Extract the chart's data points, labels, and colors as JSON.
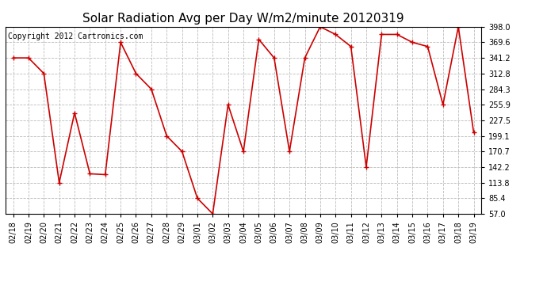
{
  "title": "Solar Radiation Avg per Day W/m2/minute 20120319",
  "copyright": "Copyright 2012 Cartronics.com",
  "dates": [
    "02/18",
    "02/19",
    "02/20",
    "02/21",
    "02/22",
    "02/23",
    "02/24",
    "02/25",
    "02/26",
    "02/27",
    "02/28",
    "02/29",
    "03/01",
    "03/02",
    "03/03",
    "03/04",
    "03/05",
    "03/06",
    "03/07",
    "03/08",
    "03/09",
    "03/10",
    "03/11",
    "03/12",
    "03/13",
    "03/14",
    "03/15",
    "03/16",
    "03/17",
    "03/18",
    "03/19"
  ],
  "values": [
    341.2,
    341.2,
    312.8,
    113.8,
    241.0,
    130.0,
    128.5,
    369.6,
    312.8,
    284.3,
    199.1,
    170.7,
    85.4,
    57.0,
    255.9,
    170.7,
    375.0,
    341.2,
    170.7,
    341.2,
    398.0,
    384.0,
    362.0,
    142.2,
    384.0,
    384.0,
    369.6,
    362.0,
    255.9,
    398.0,
    205.0
  ],
  "line_color": "#cc0000",
  "marker": "+",
  "marker_size": 5,
  "marker_lw": 1.0,
  "line_width": 1.2,
  "grid_color": "#bbbbbb",
  "grid_style": "--",
  "bg_color": "#ffffff",
  "yticks": [
    57.0,
    85.4,
    113.8,
    142.2,
    170.7,
    199.1,
    227.5,
    255.9,
    284.3,
    312.8,
    341.2,
    369.6,
    398.0
  ],
  "ylim": [
    57.0,
    398.0
  ],
  "title_fontsize": 11,
  "copyright_fontsize": 7,
  "tick_fontsize": 7,
  "fig_width": 6.9,
  "fig_height": 3.75,
  "dpi": 100
}
